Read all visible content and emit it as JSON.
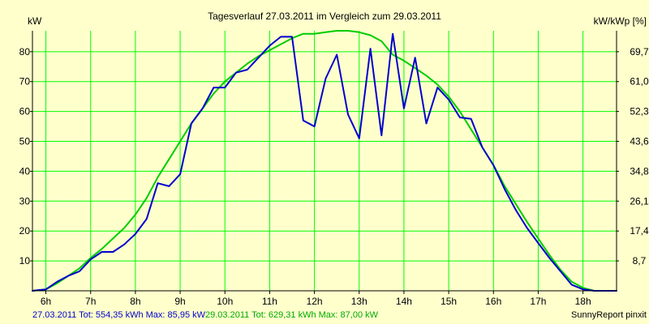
{
  "chart_data": {
    "type": "line",
    "title": "Tagesverlauf 27.03.2011 im Vergleich zum 29.03.2011",
    "ylabel_left": "kW",
    "ylabel_right": "kW/kWp [%]",
    "xlim": [
      5.7,
      18.75
    ],
    "ylim": [
      0,
      87
    ],
    "y_ticks": [
      10,
      20,
      30,
      40,
      50,
      60,
      70,
      80
    ],
    "y_tick_labels": [
      "10",
      "20",
      "30",
      "40",
      "50",
      "60",
      "70",
      "80"
    ],
    "y2_ticks": [
      8.7,
      17.4,
      26.1,
      34.8,
      43.6,
      52.3,
      61.0,
      69.7
    ],
    "y2_tick_labels": [
      "8,7",
      "17,4",
      "26,1",
      "34,8",
      "43,6",
      "52,3",
      "61,0",
      "69,7"
    ],
    "x_ticks": [
      6,
      7,
      8,
      9,
      10,
      11,
      12,
      13,
      14,
      15,
      16,
      17,
      18
    ],
    "x_tick_labels": [
      "6h",
      "7h",
      "8h",
      "9h",
      "10h",
      "11h",
      "12h",
      "13h",
      "14h",
      "15h",
      "16h",
      "17h",
      "18h"
    ],
    "grid": true,
    "colors": {
      "background": "#ffffcc",
      "plot_area": "#ffffcc",
      "grid": "#00ff00",
      "axes": "#000000",
      "series_blue": "#0000cc",
      "series_green": "#00cc00"
    },
    "series": [
      {
        "name": "27.03.2011",
        "color": "#0000cc",
        "x": [
          5.7,
          6.0,
          6.25,
          6.5,
          6.75,
          7.0,
          7.25,
          7.5,
          7.75,
          8.0,
          8.25,
          8.5,
          8.75,
          9.0,
          9.25,
          9.5,
          9.75,
          10.0,
          10.25,
          10.5,
          10.75,
          11.0,
          11.25,
          11.5,
          11.75,
          12.0,
          12.25,
          12.5,
          12.75,
          13.0,
          13.25,
          13.5,
          13.75,
          14.0,
          14.25,
          14.5,
          14.75,
          15.0,
          15.25,
          15.5,
          15.75,
          16.0,
          16.25,
          16.5,
          16.75,
          17.0,
          17.25,
          17.5,
          17.75,
          18.0,
          18.25,
          18.5,
          18.75
        ],
        "y": [
          0,
          0.5,
          3,
          5,
          6.5,
          10.5,
          13,
          13,
          15.5,
          19,
          24,
          36,
          35,
          39,
          56,
          61,
          68,
          68,
          73,
          74,
          78,
          82,
          85,
          85,
          57,
          55,
          71,
          79,
          59,
          51,
          81,
          52,
          86,
          61,
          78,
          56,
          68,
          64,
          58,
          57.5,
          48,
          42,
          34,
          27,
          21,
          16,
          11,
          6.5,
          2,
          0.5,
          0,
          0,
          0
        ]
      },
      {
        "name": "29.03.2011",
        "color": "#00cc00",
        "x": [
          5.7,
          6.0,
          6.25,
          6.5,
          6.75,
          7.0,
          7.25,
          7.5,
          7.75,
          8.0,
          8.25,
          8.5,
          8.75,
          9.0,
          9.25,
          9.5,
          9.75,
          10.0,
          10.25,
          10.5,
          10.75,
          11.0,
          11.25,
          11.5,
          11.75,
          12.0,
          12.25,
          12.5,
          12.75,
          13.0,
          13.25,
          13.5,
          13.75,
          14.0,
          14.25,
          14.5,
          14.75,
          15.0,
          15.25,
          15.5,
          15.75,
          16.0,
          16.25,
          16.5,
          16.75,
          17.0,
          17.25,
          17.5,
          17.75,
          18.0,
          18.25,
          18.5,
          18.75
        ],
        "y": [
          0,
          0.5,
          2.5,
          5,
          7.5,
          11,
          14,
          17.5,
          21,
          25.5,
          31,
          38,
          44,
          50,
          56,
          61,
          66,
          70,
          73,
          76,
          78.5,
          80.5,
          82.5,
          84.5,
          86,
          86,
          86.5,
          87,
          87,
          86.5,
          85.5,
          83.5,
          79,
          77,
          74.5,
          72,
          69,
          65,
          60,
          54,
          48,
          42,
          35,
          29,
          23,
          17.5,
          12,
          7,
          3,
          1,
          0,
          0,
          0
        ]
      }
    ]
  },
  "footer": {
    "series1_label": "27.03.2011 Tot: 554,35 kWh Max: 85,95 kW",
    "series2_label": "29.03.2011 Tot: 629,31 kWh Max: 87,00 kW",
    "brand": "SunnyReport pinxit"
  }
}
